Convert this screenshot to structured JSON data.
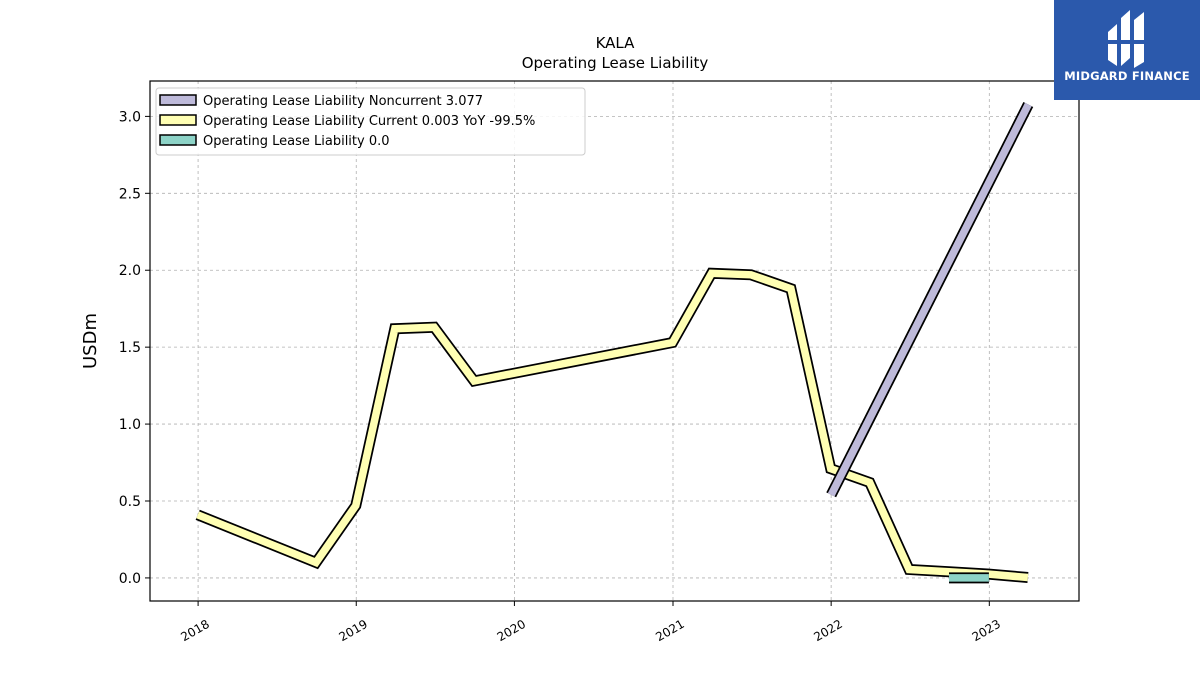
{
  "logo": {
    "text": "MIDGARD FINANCE",
    "icon": "midgard-logo-icon",
    "background": "#2b59ac"
  },
  "chart_data": {
    "type": "line",
    "title": "KALA",
    "subtitle": "Operating Lease Liability",
    "ylabel": "USDm",
    "xlabel": "",
    "ylim": [
      -0.15,
      3.23
    ],
    "xlim": [
      "2017-09-12",
      "2023-07-27"
    ],
    "yticks": [
      0.0,
      0.5,
      1.0,
      1.5,
      2.0,
      2.5,
      3.0
    ],
    "ytick_labels": [
      "0.0",
      "0.5",
      "1.0",
      "1.5",
      "2.0",
      "2.5",
      "3.0"
    ],
    "xticks": [
      "2018-01-01",
      "2019-01-01",
      "2020-01-01",
      "2021-01-01",
      "2022-01-01",
      "2023-01-01"
    ],
    "xtick_labels": [
      "2018",
      "2019",
      "2020",
      "2021",
      "2022",
      "2023"
    ],
    "grid": true,
    "legend_position": "top-left",
    "series": [
      {
        "name": "Operating Lease Liability Noncurrent",
        "legend_label": "Operating Lease Liability Noncurrent  3.077",
        "color": "#bebada",
        "x": [
          "2022-01-01",
          "2023-04-01"
        ],
        "y": [
          0.54,
          3.077
        ]
      },
      {
        "name": "Operating Lease Liability Current",
        "legend_label": "Operating Lease Liability Current  0.003 YoY -99.5%",
        "color": "#ffffb3",
        "x": [
          "2017-12-31",
          "2018-09-30",
          "2018-12-31",
          "2019-03-31",
          "2019-06-30",
          "2019-09-30",
          "2020-12-31",
          "2021-03-31",
          "2021-06-30",
          "2021-09-30",
          "2021-12-31",
          "2022-03-31",
          "2022-06-30",
          "2022-09-30",
          "2022-12-31",
          "2023-03-31"
        ],
        "y": [
          0.41,
          0.1,
          0.47,
          1.62,
          1.63,
          1.28,
          1.53,
          1.98,
          1.97,
          1.88,
          0.71,
          0.62,
          0.055,
          0.04,
          0.025,
          0.003
        ]
      },
      {
        "name": "Operating Lease Liability",
        "legend_label": "Operating Lease Liability  0.0",
        "color": "#8dd3c7",
        "x": [
          "2022-09-30",
          "2022-12-31"
        ],
        "y": [
          0.0,
          0.0
        ]
      }
    ]
  }
}
